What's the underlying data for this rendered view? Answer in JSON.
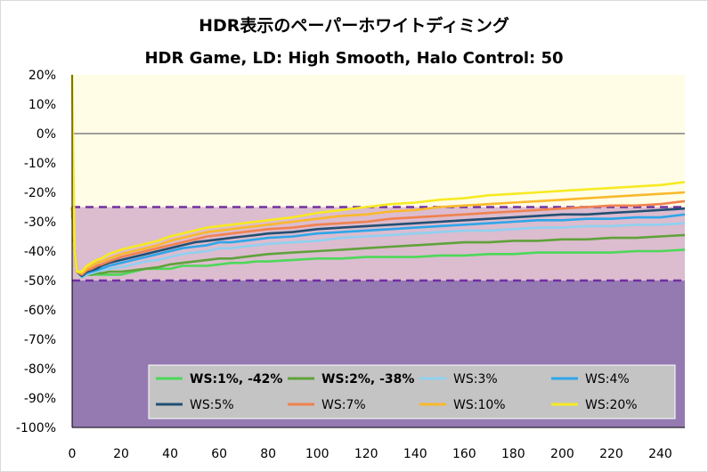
{
  "chart_data": {
    "type": "line",
    "title": "HDR表示のペーパーホワイトディミング",
    "subtitle": "HDR Game, LD: High Smooth, Halo Control: 50",
    "xlabel": "",
    "ylabel": "",
    "xlim": [
      0,
      250
    ],
    "ylim": [
      -100,
      20
    ],
    "x_ticks": [
      "0",
      "20",
      "40",
      "60",
      "80",
      "100",
      "120",
      "140",
      "160",
      "180",
      "200",
      "220",
      "240"
    ],
    "y_ticks": [
      "20%",
      "10%",
      "0%",
      "-10%",
      "-20%",
      "-30%",
      "-40%",
      "-50%",
      "-60%",
      "-70%",
      "-80%",
      "-90%",
      "-100%"
    ],
    "bands": [
      {
        "from": 0,
        "to": 20,
        "color": "#fffde6"
      },
      {
        "from": -25,
        "to": 0,
        "color": "#fffde6"
      },
      {
        "from": -50,
        "to": -25,
        "color": "#dcbccf"
      },
      {
        "from": -100,
        "to": -50,
        "color": "#957ab2"
      }
    ],
    "threshold_lines": [
      -25,
      -50
    ],
    "series": [
      {
        "name": "WS:1%, -42%",
        "bold": true,
        "color": "#4cd858",
        "x": [
          0,
          1,
          2,
          4,
          6,
          8,
          10,
          12,
          15,
          20,
          25,
          30,
          35,
          40,
          45,
          50,
          55,
          60,
          65,
          70,
          75,
          80,
          90,
          100,
          110,
          120,
          130,
          140,
          150,
          160,
          170,
          180,
          190,
          200,
          210,
          220,
          230,
          240,
          250
        ],
        "y": [
          -25,
          -40,
          -47,
          -49,
          -48,
          -48,
          -48,
          -48,
          -48,
          -48,
          -47,
          -46,
          -46,
          -46,
          -45,
          -45,
          -45,
          -44.5,
          -44,
          -44,
          -43.5,
          -43.5,
          -43,
          -42.5,
          -42.5,
          -42,
          -42,
          -42,
          -41.5,
          -41.5,
          -41,
          -41,
          -40.5,
          -40.5,
          -40.5,
          -40.5,
          -40,
          -40,
          -39.5
        ]
      },
      {
        "name": "WS:2%, -38%",
        "bold": true,
        "color": "#5fa23a",
        "x": [
          0,
          1,
          2,
          4,
          6,
          8,
          10,
          12,
          15,
          20,
          25,
          30,
          35,
          40,
          45,
          50,
          55,
          60,
          65,
          70,
          75,
          80,
          90,
          100,
          110,
          120,
          130,
          140,
          150,
          160,
          170,
          180,
          190,
          200,
          210,
          220,
          230,
          240,
          250
        ],
        "y": [
          -25,
          -40,
          -47,
          -49,
          -48,
          -48,
          -47.5,
          -47.5,
          -47,
          -47,
          -46.5,
          -46,
          -45.5,
          -44.5,
          -44,
          -43.5,
          -43,
          -42.5,
          -42.5,
          -42,
          -41.5,
          -41,
          -40.5,
          -40,
          -39.5,
          -39,
          -38.5,
          -38,
          -37.5,
          -37,
          -37,
          -36.5,
          -36.5,
          -36,
          -36,
          -35.5,
          -35.5,
          -35,
          -34.5
        ]
      },
      {
        "name": "WS:3%",
        "bold": false,
        "color": "#8fd1f0",
        "x": [
          0,
          1,
          2,
          4,
          6,
          8,
          10,
          12,
          15,
          20,
          25,
          30,
          35,
          40,
          45,
          50,
          55,
          60,
          65,
          70,
          75,
          80,
          90,
          100,
          110,
          120,
          130,
          140,
          150,
          160,
          170,
          180,
          190,
          200,
          210,
          220,
          230,
          240,
          250
        ],
        "y": [
          -25,
          -40,
          -47,
          -49,
          -48,
          -47.5,
          -47,
          -46.5,
          -46,
          -45.5,
          -44.5,
          -43.5,
          -43,
          -42,
          -41,
          -40.5,
          -40,
          -39,
          -39,
          -38.5,
          -38,
          -37.5,
          -37,
          -36.5,
          -35.5,
          -35,
          -34.5,
          -34,
          -33.5,
          -33,
          -33,
          -32.5,
          -32,
          -32,
          -31.5,
          -31.5,
          -31,
          -31,
          -30.5
        ]
      },
      {
        "name": "WS:4%",
        "bold": false,
        "color": "#2ea6e8",
        "x": [
          0,
          1,
          2,
          4,
          6,
          8,
          10,
          12,
          15,
          20,
          25,
          30,
          35,
          40,
          45,
          50,
          55,
          60,
          65,
          70,
          75,
          80,
          90,
          100,
          110,
          120,
          130,
          140,
          150,
          160,
          170,
          180,
          190,
          200,
          210,
          220,
          230,
          240,
          250
        ],
        "y": [
          -25,
          -40,
          -47,
          -48.5,
          -47.5,
          -47,
          -46.5,
          -46,
          -45,
          -44,
          -43,
          -42,
          -41,
          -40,
          -39,
          -38.5,
          -38,
          -37,
          -37,
          -36.5,
          -36,
          -35.5,
          -35,
          -34,
          -33.5,
          -33,
          -32.5,
          -32,
          -31.5,
          -31,
          -30.5,
          -30,
          -29.5,
          -29.5,
          -29,
          -29,
          -28.5,
          -28.5,
          -27.5
        ]
      },
      {
        "name": "WS:5%",
        "bold": false,
        "color": "#234f72",
        "x": [
          0,
          1,
          2,
          4,
          6,
          8,
          10,
          12,
          15,
          20,
          25,
          30,
          35,
          40,
          45,
          50,
          55,
          60,
          65,
          70,
          75,
          80,
          90,
          100,
          110,
          120,
          130,
          140,
          150,
          160,
          170,
          180,
          190,
          200,
          210,
          220,
          230,
          240,
          250
        ],
        "y": [
          -25,
          -40,
          -47,
          -48.5,
          -47,
          -46.5,
          -46,
          -45,
          -44,
          -43,
          -42,
          -41,
          -40,
          -39,
          -38,
          -37,
          -36.5,
          -36,
          -35.5,
          -35,
          -34.5,
          -34,
          -33.5,
          -32.5,
          -32,
          -31.5,
          -31,
          -30.5,
          -30,
          -29.5,
          -29,
          -28.5,
          -28,
          -27.5,
          -27.5,
          -27,
          -26.5,
          -26,
          -25.5
        ]
      },
      {
        "name": "WS:7%",
        "bold": false,
        "color": "#f0824f",
        "x": [
          0,
          1,
          2,
          4,
          6,
          8,
          10,
          12,
          15,
          20,
          25,
          30,
          35,
          40,
          45,
          50,
          55,
          60,
          65,
          70,
          75,
          80,
          90,
          100,
          110,
          120,
          130,
          140,
          150,
          160,
          170,
          180,
          190,
          200,
          210,
          220,
          230,
          240,
          250
        ],
        "y": [
          -25,
          -40,
          -47,
          -48,
          -46.5,
          -46,
          -45,
          -44.5,
          -43.5,
          -42,
          -41,
          -40,
          -39,
          -38,
          -37,
          -36,
          -35,
          -34.5,
          -34,
          -33.5,
          -33,
          -32.5,
          -32,
          -31,
          -30.5,
          -30,
          -29,
          -28.5,
          -28,
          -27.5,
          -27,
          -26.5,
          -26,
          -25.5,
          -25,
          -24.5,
          -24.5,
          -24,
          -23
        ]
      },
      {
        "name": "WS:10%",
        "bold": false,
        "color": "#f9b92c",
        "x": [
          0,
          1,
          2,
          4,
          6,
          8,
          10,
          12,
          15,
          20,
          25,
          30,
          35,
          40,
          45,
          50,
          55,
          60,
          65,
          70,
          75,
          80,
          90,
          100,
          110,
          120,
          130,
          140,
          150,
          160,
          170,
          180,
          190,
          200,
          210,
          220,
          230,
          240,
          250
        ],
        "y": [
          -25,
          -40,
          -47,
          -47.5,
          -46,
          -45,
          -44,
          -43.5,
          -42.5,
          -41,
          -40,
          -39,
          -38,
          -36.5,
          -35.5,
          -34.5,
          -33.5,
          -33,
          -32.5,
          -32,
          -31.5,
          -31,
          -30,
          -29,
          -28,
          -27.5,
          -26.5,
          -26,
          -25,
          -24.5,
          -24,
          -23.5,
          -23,
          -22.5,
          -22,
          -21.5,
          -21,
          -20.5,
          -20
        ]
      },
      {
        "name": "WS:20%",
        "bold": false,
        "color": "#f7ea22",
        "x": [
          0,
          1,
          2,
          4,
          6,
          8,
          10,
          12,
          15,
          20,
          25,
          30,
          35,
          40,
          45,
          50,
          55,
          60,
          65,
          70,
          75,
          80,
          90,
          100,
          110,
          120,
          130,
          140,
          150,
          160,
          170,
          180,
          190,
          200,
          210,
          220,
          230,
          240,
          250
        ],
        "y": [
          20,
          -40,
          -47,
          -47,
          -45,
          -44,
          -43,
          -42.5,
          -41,
          -39.5,
          -38.5,
          -37.5,
          -36.5,
          -35,
          -34,
          -33,
          -32,
          -31.5,
          -31,
          -30.5,
          -30,
          -29.5,
          -28.5,
          -27,
          -26,
          -25,
          -24,
          -23.5,
          -22.5,
          -22,
          -21,
          -20.5,
          -20,
          -19.5,
          -19,
          -18.5,
          -18,
          -17.5,
          -16.5
        ]
      }
    ]
  }
}
